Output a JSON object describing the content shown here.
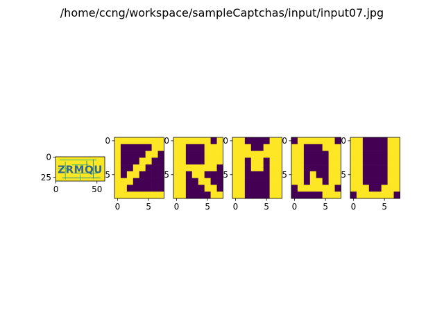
{
  "figure": {
    "title": "/home/ccng/workspace/sampleCaptchas/input/input07.jpg"
  },
  "colors": {
    "low": "#440154",
    "high": "#fde725",
    "teal": "#21918c",
    "mid": "#35b779",
    "blue": "#31688e"
  },
  "chart_data": [
    {
      "type": "heatmap",
      "name": "input-captcha",
      "text": "ZRMQU",
      "xlim": [
        0,
        60
      ],
      "ylim": [
        30,
        0
      ],
      "x_ticks": [
        0,
        50
      ],
      "y_ticks": [
        0,
        25
      ]
    },
    {
      "type": "heatmap",
      "name": "glyph-1",
      "x_ticks": [
        0,
        5
      ],
      "y_ticks": [
        0,
        5
      ],
      "rows": [
        [
          1,
          1,
          1,
          1,
          1,
          1,
          1,
          1
        ],
        [
          1,
          0,
          0,
          0,
          0,
          0,
          1,
          1
        ],
        [
          1,
          0,
          0,
          0,
          0,
          1,
          1,
          0
        ],
        [
          1,
          0,
          0,
          0,
          1,
          1,
          0,
          0
        ],
        [
          1,
          0,
          0,
          1,
          1,
          0,
          0,
          0
        ],
        [
          1,
          0,
          1,
          1,
          0,
          0,
          0,
          0
        ],
        [
          1,
          1,
          1,
          0,
          0,
          0,
          0,
          0
        ],
        [
          1,
          1,
          0,
          0,
          0,
          0,
          0,
          0
        ],
        [
          1,
          1,
          1,
          1,
          1,
          1,
          1,
          1
        ]
      ]
    },
    {
      "type": "heatmap",
      "name": "glyph-2",
      "x_ticks": [
        0,
        5
      ],
      "y_ticks": [
        0,
        5
      ],
      "rows": [
        [
          1,
          1,
          1,
          1,
          1,
          1,
          0,
          1
        ],
        [
          1,
          1,
          0,
          0,
          0,
          1,
          1,
          1
        ],
        [
          1,
          1,
          0,
          0,
          0,
          1,
          1,
          1
        ],
        [
          1,
          1,
          0,
          0,
          0,
          1,
          1,
          1
        ],
        [
          1,
          1,
          1,
          1,
          1,
          1,
          1,
          0
        ],
        [
          1,
          1,
          0,
          1,
          1,
          0,
          0,
          0
        ],
        [
          1,
          1,
          0,
          0,
          1,
          1,
          0,
          0
        ],
        [
          1,
          1,
          0,
          0,
          0,
          1,
          1,
          0
        ],
        [
          1,
          1,
          0,
          0,
          0,
          0,
          1,
          1
        ]
      ]
    },
    {
      "type": "heatmap",
      "name": "glyph-3",
      "x_ticks": [
        0,
        5
      ],
      "y_ticks": [
        0,
        5
      ],
      "rows": [
        [
          1,
          1,
          0,
          0,
          0,
          0,
          1,
          1
        ],
        [
          1,
          1,
          1,
          0,
          0,
          1,
          1,
          1
        ],
        [
          1,
          1,
          1,
          1,
          1,
          1,
          1,
          1
        ],
        [
          1,
          1,
          0,
          1,
          1,
          0,
          1,
          1
        ],
        [
          1,
          1,
          0,
          1,
          1,
          0,
          1,
          1
        ],
        [
          1,
          1,
          0,
          0,
          0,
          0,
          1,
          1
        ],
        [
          1,
          1,
          0,
          0,
          0,
          0,
          1,
          1
        ],
        [
          1,
          1,
          0,
          0,
          0,
          0,
          1,
          1
        ],
        [
          1,
          1,
          0,
          0,
          0,
          0,
          1,
          1
        ]
      ]
    },
    {
      "type": "heatmap",
      "name": "glyph-4",
      "x_ticks": [
        0,
        5
      ],
      "y_ticks": [
        0,
        5
      ],
      "rows": [
        [
          0,
          1,
          1,
          1,
          1,
          1,
          1,
          0
        ],
        [
          1,
          1,
          0,
          0,
          0,
          1,
          1,
          1
        ],
        [
          1,
          1,
          0,
          0,
          0,
          0,
          1,
          1
        ],
        [
          1,
          1,
          0,
          0,
          0,
          0,
          1,
          1
        ],
        [
          1,
          1,
          0,
          0,
          0,
          0,
          1,
          1
        ],
        [
          1,
          1,
          0,
          1,
          0,
          0,
          1,
          1
        ],
        [
          1,
          1,
          0,
          1,
          1,
          0,
          1,
          1
        ],
        [
          0,
          1,
          1,
          1,
          1,
          1,
          1,
          0
        ],
        [
          0,
          0,
          0,
          0,
          0,
          1,
          1,
          1
        ]
      ]
    },
    {
      "type": "heatmap",
      "name": "glyph-5",
      "x_ticks": [
        0,
        5
      ],
      "y_ticks": [
        0,
        5
      ],
      "rows": [
        [
          1,
          1,
          0,
          0,
          0,
          0,
          1,
          1
        ],
        [
          1,
          1,
          0,
          0,
          0,
          0,
          1,
          1
        ],
        [
          1,
          1,
          0,
          0,
          0,
          0,
          1,
          1
        ],
        [
          1,
          1,
          0,
          0,
          0,
          0,
          1,
          1
        ],
        [
          1,
          1,
          0,
          0,
          0,
          0,
          1,
          1
        ],
        [
          1,
          1,
          0,
          0,
          0,
          0,
          1,
          1
        ],
        [
          1,
          1,
          0,
          0,
          0,
          0,
          1,
          1
        ],
        [
          1,
          1,
          1,
          0,
          0,
          1,
          1,
          1
        ],
        [
          0,
          1,
          1,
          1,
          1,
          1,
          1,
          0
        ]
      ]
    }
  ]
}
